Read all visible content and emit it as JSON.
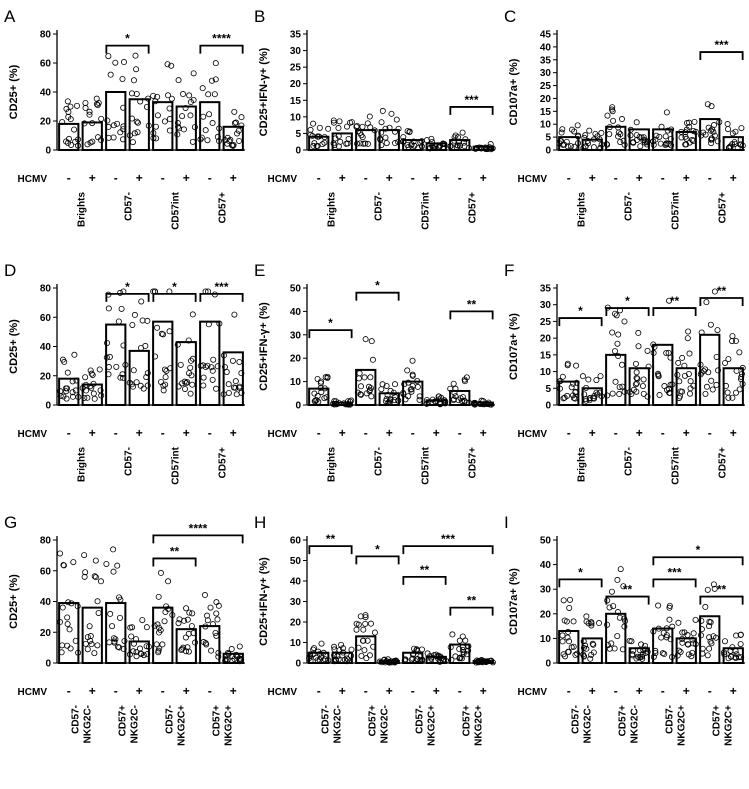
{
  "hcmv_label": "HCMV",
  "panels": [
    {
      "letter": "A",
      "ylabel": "CD25+ (%)",
      "ylim": [
        0,
        80
      ],
      "yticks": [
        0,
        20,
        40,
        60,
        80
      ],
      "groups": [
        "Brights",
        "CD57-",
        "CD57int",
        "CD57+"
      ],
      "bars": [
        {
          "group": 0,
          "sign": "-",
          "value": 18
        },
        {
          "group": 0,
          "sign": "+",
          "value": 19
        },
        {
          "group": 1,
          "sign": "-",
          "value": 40
        },
        {
          "group": 1,
          "sign": "+",
          "value": 35
        },
        {
          "group": 2,
          "sign": "-",
          "value": 33
        },
        {
          "group": 2,
          "sign": "+",
          "value": 30
        },
        {
          "group": 3,
          "sign": "-",
          "value": 33
        },
        {
          "group": 3,
          "sign": "+",
          "value": 16
        }
      ],
      "sig": [
        {
          "from": 2,
          "to": 3,
          "label": "*",
          "level": 72
        },
        {
          "from": 6,
          "to": 7,
          "label": "****",
          "level": 72
        }
      ]
    },
    {
      "letter": "B",
      "ylabel": "CD25+IFN-γ+ (%)",
      "ylim": [
        0,
        35
      ],
      "yticks": [
        0,
        5,
        10,
        15,
        20,
        25,
        30,
        35
      ],
      "groups": [
        "Brights",
        "CD57-",
        "CD57int",
        "CD57+"
      ],
      "bars": [
        {
          "group": 0,
          "sign": "-",
          "value": 4
        },
        {
          "group": 0,
          "sign": "+",
          "value": 5
        },
        {
          "group": 1,
          "sign": "-",
          "value": 6
        },
        {
          "group": 1,
          "sign": "+",
          "value": 6
        },
        {
          "group": 2,
          "sign": "-",
          "value": 3
        },
        {
          "group": 2,
          "sign": "+",
          "value": 2
        },
        {
          "group": 3,
          "sign": "-",
          "value": 3
        },
        {
          "group": 3,
          "sign": "+",
          "value": 1
        }
      ],
      "sig": [
        {
          "from": 6,
          "to": 7,
          "label": "***",
          "level": 13
        }
      ]
    },
    {
      "letter": "C",
      "ylabel": "CD107a+ (%)",
      "ylim": [
        0,
        45
      ],
      "yticks": [
        0,
        5,
        10,
        15,
        20,
        25,
        30,
        35,
        40,
        45
      ],
      "groups": [
        "Brights",
        "CD57-",
        "CD57int",
        "CD57+"
      ],
      "bars": [
        {
          "group": 0,
          "sign": "-",
          "value": 5
        },
        {
          "group": 0,
          "sign": "+",
          "value": 4
        },
        {
          "group": 1,
          "sign": "-",
          "value": 9
        },
        {
          "group": 1,
          "sign": "+",
          "value": 8
        },
        {
          "group": 2,
          "sign": "-",
          "value": 8
        },
        {
          "group": 2,
          "sign": "+",
          "value": 7
        },
        {
          "group": 3,
          "sign": "-",
          "value": 12
        },
        {
          "group": 3,
          "sign": "+",
          "value": 5
        }
      ],
      "sig": [
        {
          "from": 6,
          "to": 7,
          "label": "***",
          "level": 38
        }
      ]
    },
    {
      "letter": "D",
      "ylabel": "CD25+ (%)",
      "ylim": [
        0,
        80
      ],
      "yticks": [
        0,
        20,
        40,
        60,
        80
      ],
      "groups": [
        "Brights",
        "CD57-",
        "CD57int",
        "CD57+"
      ],
      "bars": [
        {
          "group": 0,
          "sign": "-",
          "value": 18
        },
        {
          "group": 0,
          "sign": "+",
          "value": 14
        },
        {
          "group": 1,
          "sign": "-",
          "value": 55
        },
        {
          "group": 1,
          "sign": "+",
          "value": 37
        },
        {
          "group": 2,
          "sign": "-",
          "value": 57
        },
        {
          "group": 2,
          "sign": "+",
          "value": 43
        },
        {
          "group": 3,
          "sign": "-",
          "value": 57
        },
        {
          "group": 3,
          "sign": "+",
          "value": 36
        }
      ],
      "sig": [
        {
          "from": 2,
          "to": 3,
          "label": "*",
          "level": 76
        },
        {
          "from": 4,
          "to": 5,
          "label": "*",
          "level": 76
        },
        {
          "from": 6,
          "to": 7,
          "label": "***",
          "level": 76
        }
      ]
    },
    {
      "letter": "E",
      "ylabel": "CD25+IFN-γ+ (%)",
      "ylim": [
        0,
        50
      ],
      "yticks": [
        0,
        10,
        20,
        30,
        40,
        50
      ],
      "groups": [
        "Brights",
        "CD57-",
        "CD57int",
        "CD57+"
      ],
      "bars": [
        {
          "group": 0,
          "sign": "-",
          "value": 7
        },
        {
          "group": 0,
          "sign": "+",
          "value": 1
        },
        {
          "group": 1,
          "sign": "-",
          "value": 15
        },
        {
          "group": 1,
          "sign": "+",
          "value": 5
        },
        {
          "group": 2,
          "sign": "-",
          "value": 10
        },
        {
          "group": 2,
          "sign": "+",
          "value": 2
        },
        {
          "group": 3,
          "sign": "-",
          "value": 6
        },
        {
          "group": 3,
          "sign": "+",
          "value": 1
        }
      ],
      "sig": [
        {
          "from": 0,
          "to": 1,
          "label": "*",
          "level": 32
        },
        {
          "from": 2,
          "to": 3,
          "label": "*",
          "level": 48
        },
        {
          "from": 6,
          "to": 7,
          "label": "**",
          "level": 40
        }
      ]
    },
    {
      "letter": "F",
      "ylabel": "CD107a+ (%)",
      "ylim": [
        0,
        35
      ],
      "yticks": [
        0,
        5,
        10,
        15,
        20,
        25,
        30,
        35
      ],
      "groups": [
        "Brights",
        "CD57-",
        "CD57int",
        "CD57+"
      ],
      "bars": [
        {
          "group": 0,
          "sign": "-",
          "value": 7
        },
        {
          "group": 0,
          "sign": "+",
          "value": 5
        },
        {
          "group": 1,
          "sign": "-",
          "value": 15
        },
        {
          "group": 1,
          "sign": "+",
          "value": 11
        },
        {
          "group": 2,
          "sign": "-",
          "value": 18
        },
        {
          "group": 2,
          "sign": "+",
          "value": 11
        },
        {
          "group": 3,
          "sign": "-",
          "value": 21
        },
        {
          "group": 3,
          "sign": "+",
          "value": 11
        }
      ],
      "sig": [
        {
          "from": 0,
          "to": 1,
          "label": "*",
          "level": 26
        },
        {
          "from": 2,
          "to": 3,
          "label": "*",
          "level": 29
        },
        {
          "from": 4,
          "to": 5,
          "label": "**",
          "level": 29
        },
        {
          "from": 6,
          "to": 7,
          "label": "**",
          "level": 32
        }
      ]
    },
    {
      "letter": "G",
      "ylabel": "CD25+ (%)",
      "ylim": [
        0,
        80
      ],
      "yticks": [
        0,
        20,
        40,
        60,
        80
      ],
      "groups": [
        "CD57-\nNKG2C-",
        "CD57+\nNKG2C-",
        "CD57-\nNKG2C+",
        "CD57+\nNKG2C+"
      ],
      "bars": [
        {
          "group": 0,
          "sign": "-",
          "value": 39
        },
        {
          "group": 0,
          "sign": "+",
          "value": 36
        },
        {
          "group": 1,
          "sign": "-",
          "value": 39
        },
        {
          "group": 1,
          "sign": "+",
          "value": 14
        },
        {
          "group": 2,
          "sign": "-",
          "value": 36
        },
        {
          "group": 2,
          "sign": "+",
          "value": 22
        },
        {
          "group": 3,
          "sign": "-",
          "value": 24
        },
        {
          "group": 3,
          "sign": "+",
          "value": 6
        }
      ],
      "sig": [
        {
          "from": 4,
          "to": 5,
          "label": "**",
          "level": 68
        },
        {
          "from": 4,
          "to": 7,
          "label": "****",
          "level": 83
        }
      ]
    },
    {
      "letter": "H",
      "ylabel": "CD25+IFN-γ+ (%)",
      "ylim": [
        0,
        60
      ],
      "yticks": [
        0,
        10,
        20,
        30,
        40,
        50,
        60
      ],
      "groups": [
        "CD57-\nNKG2C-",
        "CD57+\nNKG2C-",
        "CD57-\nNKG2C+",
        "CD57+\nNKG2C+"
      ],
      "bars": [
        {
          "group": 0,
          "sign": "-",
          "value": 5
        },
        {
          "group": 0,
          "sign": "+",
          "value": 5
        },
        {
          "group": 1,
          "sign": "-",
          "value": 13
        },
        {
          "group": 1,
          "sign": "+",
          "value": 1
        },
        {
          "group": 2,
          "sign": "-",
          "value": 5
        },
        {
          "group": 2,
          "sign": "+",
          "value": 3
        },
        {
          "group": 3,
          "sign": "-",
          "value": 9
        },
        {
          "group": 3,
          "sign": "+",
          "value": 1
        }
      ],
      "sig": [
        {
          "from": 0,
          "to": 1,
          "label": "**",
          "level": 57
        },
        {
          "from": 2,
          "to": 3,
          "label": "*",
          "level": 52
        },
        {
          "from": 4,
          "to": 7,
          "label": "***",
          "level": 57
        },
        {
          "from": 4,
          "to": 5,
          "label": "**",
          "level": 42
        },
        {
          "from": 6,
          "to": 7,
          "label": "**",
          "level": 27
        }
      ]
    },
    {
      "letter": "I",
      "ylabel": "CD107a+ (%)",
      "ylim": [
        0,
        50
      ],
      "yticks": [
        0,
        10,
        20,
        30,
        40,
        50
      ],
      "groups": [
        "CD57-\nNKG2C-",
        "CD57+\nNKG2C-",
        "CD57-\nNKG2C+",
        "CD57+\nNKG2C+"
      ],
      "bars": [
        {
          "group": 0,
          "sign": "-",
          "value": 13
        },
        {
          "group": 0,
          "sign": "+",
          "value": 10
        },
        {
          "group": 1,
          "sign": "-",
          "value": 20
        },
        {
          "group": 1,
          "sign": "+",
          "value": 6
        },
        {
          "group": 2,
          "sign": "-",
          "value": 14
        },
        {
          "group": 2,
          "sign": "+",
          "value": 10
        },
        {
          "group": 3,
          "sign": "-",
          "value": 19
        },
        {
          "group": 3,
          "sign": "+",
          "value": 6
        }
      ],
      "sig": [
        {
          "from": 0,
          "to": 1,
          "label": "*",
          "level": 34
        },
        {
          "from": 2,
          "to": 3,
          "label": "**",
          "level": 27
        },
        {
          "from": 4,
          "to": 5,
          "label": "***",
          "level": 34
        },
        {
          "from": 6,
          "to": 7,
          "label": "**",
          "level": 27
        },
        {
          "from": 4,
          "to": 7,
          "label": "*",
          "level": 43
        }
      ]
    }
  ],
  "chart_data": [
    {
      "type": "bar",
      "panel": "A",
      "ylabel": "CD25+ (%)",
      "ylim": [
        0,
        80
      ],
      "categories": [
        "Brights",
        "CD57-",
        "CD57int",
        "CD57+"
      ],
      "series": [
        {
          "name": "-",
          "values": [
            18,
            40,
            33,
            33
          ]
        },
        {
          "name": "+",
          "values": [
            19,
            35,
            30,
            16
          ]
        }
      ]
    },
    {
      "type": "bar",
      "panel": "B",
      "ylabel": "CD25+IFN-γ+ (%)",
      "ylim": [
        0,
        35
      ],
      "categories": [
        "Brights",
        "CD57-",
        "CD57int",
        "CD57+"
      ],
      "series": [
        {
          "name": "-",
          "values": [
            4,
            6,
            3,
            3
          ]
        },
        {
          "name": "+",
          "values": [
            5,
            6,
            2,
            1
          ]
        }
      ]
    },
    {
      "type": "bar",
      "panel": "C",
      "ylabel": "CD107a+ (%)",
      "ylim": [
        0,
        45
      ],
      "categories": [
        "Brights",
        "CD57-",
        "CD57int",
        "CD57+"
      ],
      "series": [
        {
          "name": "-",
          "values": [
            5,
            9,
            8,
            12
          ]
        },
        {
          "name": "+",
          "values": [
            4,
            8,
            7,
            5
          ]
        }
      ]
    },
    {
      "type": "bar",
      "panel": "D",
      "ylabel": "CD25+ (%)",
      "ylim": [
        0,
        80
      ],
      "categories": [
        "Brights",
        "CD57-",
        "CD57int",
        "CD57+"
      ],
      "series": [
        {
          "name": "-",
          "values": [
            18,
            55,
            57,
            57
          ]
        },
        {
          "name": "+",
          "values": [
            14,
            37,
            43,
            36
          ]
        }
      ]
    },
    {
      "type": "bar",
      "panel": "E",
      "ylabel": "CD25+IFN-γ+ (%)",
      "ylim": [
        0,
        50
      ],
      "categories": [
        "Brights",
        "CD57-",
        "CD57int",
        "CD57+"
      ],
      "series": [
        {
          "name": "-",
          "values": [
            7,
            15,
            10,
            6
          ]
        },
        {
          "name": "+",
          "values": [
            1,
            5,
            2,
            1
          ]
        }
      ]
    },
    {
      "type": "bar",
      "panel": "F",
      "ylabel": "CD107a+ (%)",
      "ylim": [
        0,
        35
      ],
      "categories": [
        "Brights",
        "CD57-",
        "CD57int",
        "CD57+"
      ],
      "series": [
        {
          "name": "-",
          "values": [
            7,
            15,
            18,
            21
          ]
        },
        {
          "name": "+",
          "values": [
            5,
            11,
            11,
            11
          ]
        }
      ]
    },
    {
      "type": "bar",
      "panel": "G",
      "ylabel": "CD25+ (%)",
      "ylim": [
        0,
        80
      ],
      "categories": [
        "CD57- NKG2C-",
        "CD57+ NKG2C-",
        "CD57- NKG2C+",
        "CD57+ NKG2C+"
      ],
      "series": [
        {
          "name": "-",
          "values": [
            39,
            39,
            36,
            24
          ]
        },
        {
          "name": "+",
          "values": [
            36,
            14,
            22,
            6
          ]
        }
      ]
    },
    {
      "type": "bar",
      "panel": "H",
      "ylabel": "CD25+IFN-γ+ (%)",
      "ylim": [
        0,
        60
      ],
      "categories": [
        "CD57- NKG2C-",
        "CD57+ NKG2C-",
        "CD57- NKG2C+",
        "CD57+ NKG2C+"
      ],
      "series": [
        {
          "name": "-",
          "values": [
            5,
            13,
            5,
            9
          ]
        },
        {
          "name": "+",
          "values": [
            5,
            1,
            3,
            1
          ]
        }
      ]
    },
    {
      "type": "bar",
      "panel": "I",
      "ylabel": "CD107a+ (%)",
      "ylim": [
        0,
        50
      ],
      "categories": [
        "CD57- NKG2C-",
        "CD57+ NKG2C-",
        "CD57- NKG2C+",
        "CD57+ NKG2C+"
      ],
      "series": [
        {
          "name": "-",
          "values": [
            13,
            20,
            14,
            19
          ]
        },
        {
          "name": "+",
          "values": [
            10,
            6,
            10,
            6
          ]
        }
      ]
    }
  ]
}
